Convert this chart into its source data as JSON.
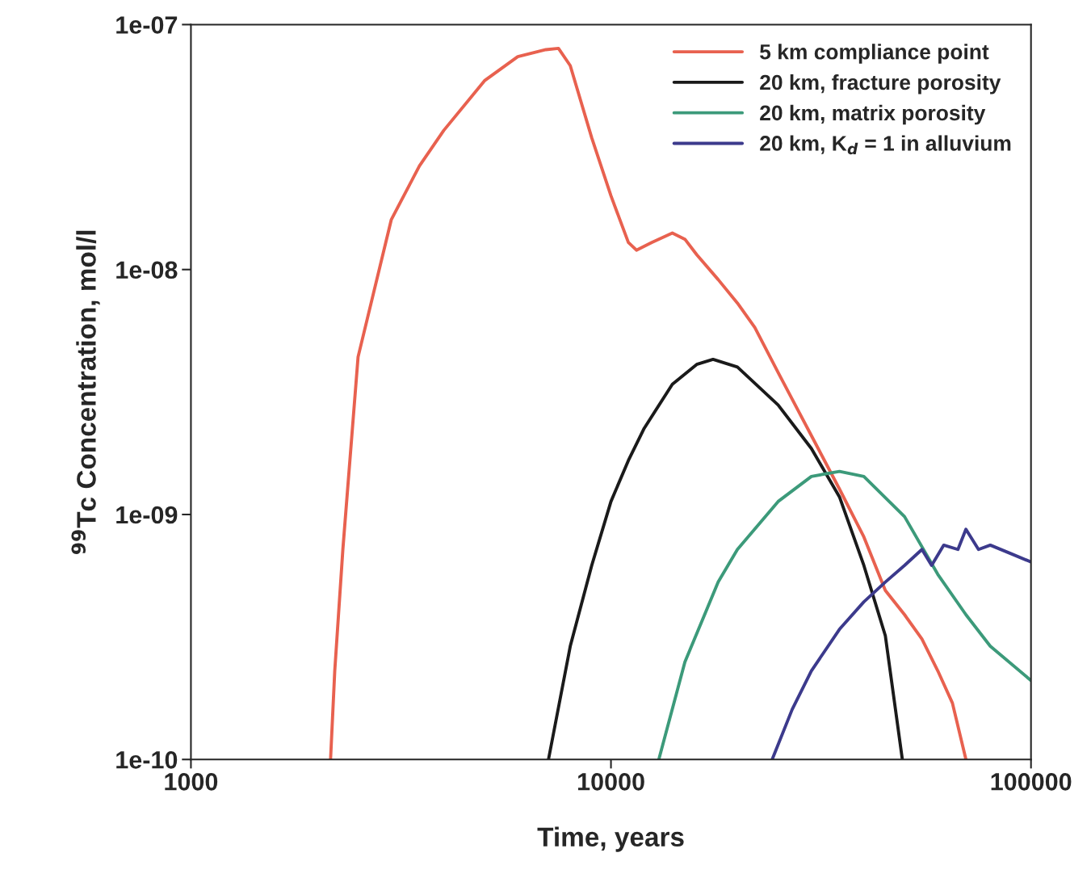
{
  "chart_data": {
    "type": "line",
    "xlabel": "Time, years",
    "ylabel": "$^{99}$Tc Concentration, mol/l",
    "log": "xy",
    "grid": false,
    "legend": "top right",
    "marker": "none",
    "line_style": "solid",
    "xlim": [
      1000,
      100000
    ],
    "xticks": [
      1000,
      10000,
      100000
    ],
    "ylim": [
      1e-10,
      1e-07
    ],
    "yticks": [
      {
        "value": 1e-10,
        "label": "1e-10"
      },
      {
        "value": 1e-09,
        "label": "1e-09"
      },
      {
        "value": 1e-08,
        "label": "1e-08"
      },
      {
        "value": 1e-07,
        "label": "1e-07"
      }
    ],
    "series": [
      {
        "name": "5 km compliance point",
        "color": "#e8614f",
        "x": [
          2150,
          2200,
          2300,
          2500,
          3000,
          3500,
          4000,
          5000,
          6000,
          7000,
          7500,
          8000,
          9000,
          10000,
          11000,
          11500,
          12500,
          14000,
          15000,
          16000,
          18000,
          20000,
          22000,
          25000,
          30000,
          35000,
          40000,
          45000,
          50000,
          55000,
          60000,
          65000,
          70000
        ],
        "values": [
          1e-10,
          2.3e-10,
          7.2e-10,
          4.4e-09,
          1.6e-08,
          2.65e-08,
          3.7e-08,
          5.9e-08,
          7.4e-08,
          7.9e-08,
          8e-08,
          6.8e-08,
          3.45e-08,
          2e-08,
          1.29e-08,
          1.2e-08,
          1.29e-08,
          1.41e-08,
          1.33e-08,
          1.15e-08,
          9.1e-09,
          7.3e-09,
          5.8e-09,
          3.8e-09,
          2.1e-09,
          1.27e-09,
          8.1e-10,
          4.9e-10,
          3.9e-10,
          3.1e-10,
          2.3e-10,
          1.7e-10,
          1e-10
        ]
      },
      {
        "name": "20 km, fracture porosity",
        "color": "#1a1a1a",
        "x": [
          7100,
          8000,
          9000,
          10000,
          11000,
          12000,
          14000,
          16000,
          17500,
          20000,
          25000,
          30000,
          35000,
          40000,
          45000,
          49400
        ],
        "values": [
          1e-10,
          2.9e-10,
          6.2e-10,
          1.13e-09,
          1.66e-09,
          2.25e-09,
          3.4e-09,
          4.1e-09,
          4.3e-09,
          4e-09,
          2.8e-09,
          1.86e-09,
          1.18e-09,
          6.2e-10,
          3.2e-10,
          1e-10
        ]
      },
      {
        "name": "20 km, matrix porosity",
        "color": "#3c9a7a",
        "x": [
          13000,
          15000,
          18000,
          20000,
          25000,
          30000,
          35000,
          40000,
          50000,
          60000,
          70000,
          80000,
          100000
        ],
        "values": [
          1e-10,
          2.5e-10,
          5.3e-10,
          7.2e-10,
          1.13e-09,
          1.43e-09,
          1.5e-09,
          1.43e-09,
          9.8e-10,
          5.7e-10,
          3.9e-10,
          2.9e-10,
          2.1e-10
        ]
      },
      {
        "name": "20 km, K$_{d}$ = 1 in alluvium",
        "color": "#3c3a8c",
        "x": [
          24200,
          27000,
          30000,
          35000,
          40000,
          45000,
          50000,
          55000,
          58000,
          62000,
          67000,
          70000,
          75000,
          80000,
          90000,
          100000
        ],
        "values": [
          1e-10,
          1.6e-10,
          2.3e-10,
          3.4e-10,
          4.4e-10,
          5.3e-10,
          6.2e-10,
          7.2e-10,
          6.2e-10,
          7.5e-10,
          7.2e-10,
          8.7e-10,
          7.2e-10,
          7.5e-10,
          6.9e-10,
          6.4e-10
        ]
      }
    ]
  }
}
